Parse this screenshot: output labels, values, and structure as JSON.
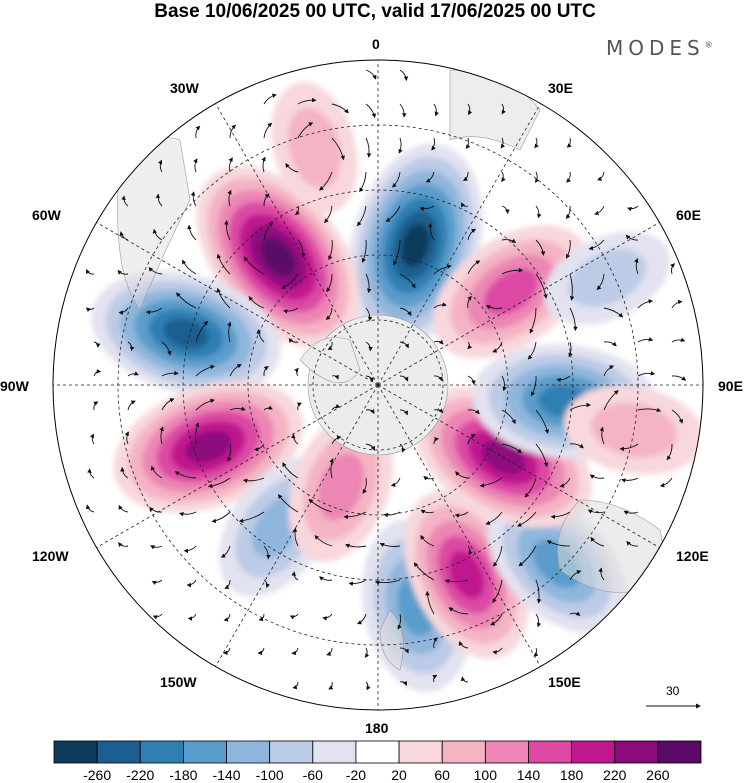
{
  "title": "Base 10/06/2025 00 UTC, valid 17/06/2025 00 UTC",
  "brand": {
    "text": "MODES",
    "mark": "®"
  },
  "longitude_labels": {
    "top": "0",
    "top_right": "30E",
    "right_upper": "60E",
    "right": "90E",
    "right_lower": "120E",
    "bottom_right": "150E",
    "bottom": "180",
    "bottom_left": "150W",
    "left_lower": "120W",
    "left": "90W",
    "left_upper": "60W",
    "top_left": "30W"
  },
  "reference_vector": {
    "value": "30"
  },
  "colorbar": {
    "colors": [
      "#0e3a5c",
      "#1a5f8f",
      "#2f7fb3",
      "#5a9ccb",
      "#8fb6dc",
      "#bccbe6",
      "#e2e2f0",
      "#ffffff",
      "#f8d8dc",
      "#f4b4c4",
      "#ec86b4",
      "#dc4aa4",
      "#c0188e",
      "#8c0a7e",
      "#5a0a66"
    ],
    "tick_labels": [
      "-260",
      "-220",
      "-180",
      "-140",
      "-100",
      "-60",
      "-20",
      "20",
      "60",
      "100",
      "140",
      "180",
      "220",
      "260"
    ]
  },
  "anomaly_centers": [
    {
      "lon": 15,
      "colat": 40,
      "value": -260
    },
    {
      "lon": -38,
      "colat": 45,
      "value": 260
    },
    {
      "lon": -75,
      "colat": 55,
      "value": -220
    },
    {
      "lon": -110,
      "colat": 50,
      "value": 230
    },
    {
      "lon": -145,
      "colat": 48,
      "value": -120
    },
    {
      "lon": -160,
      "colat": 30,
      "value": 120
    },
    {
      "lon": 170,
      "colat": 62,
      "value": -170
    },
    {
      "lon": 155,
      "colat": 58,
      "value": 180
    },
    {
      "lon": 135,
      "colat": 70,
      "value": -150
    },
    {
      "lon": 120,
      "colat": 40,
      "value": 220
    },
    {
      "lon": 95,
      "colat": 52,
      "value": -200
    },
    {
      "lon": 55,
      "colat": 45,
      "value": 170
    },
    {
      "lon": 65,
      "colat": 70,
      "value": -60
    },
    {
      "lon": -15,
      "colat": 68,
      "value": 60
    },
    {
      "lon": 100,
      "colat": 72,
      "value": 80
    }
  ]
}
